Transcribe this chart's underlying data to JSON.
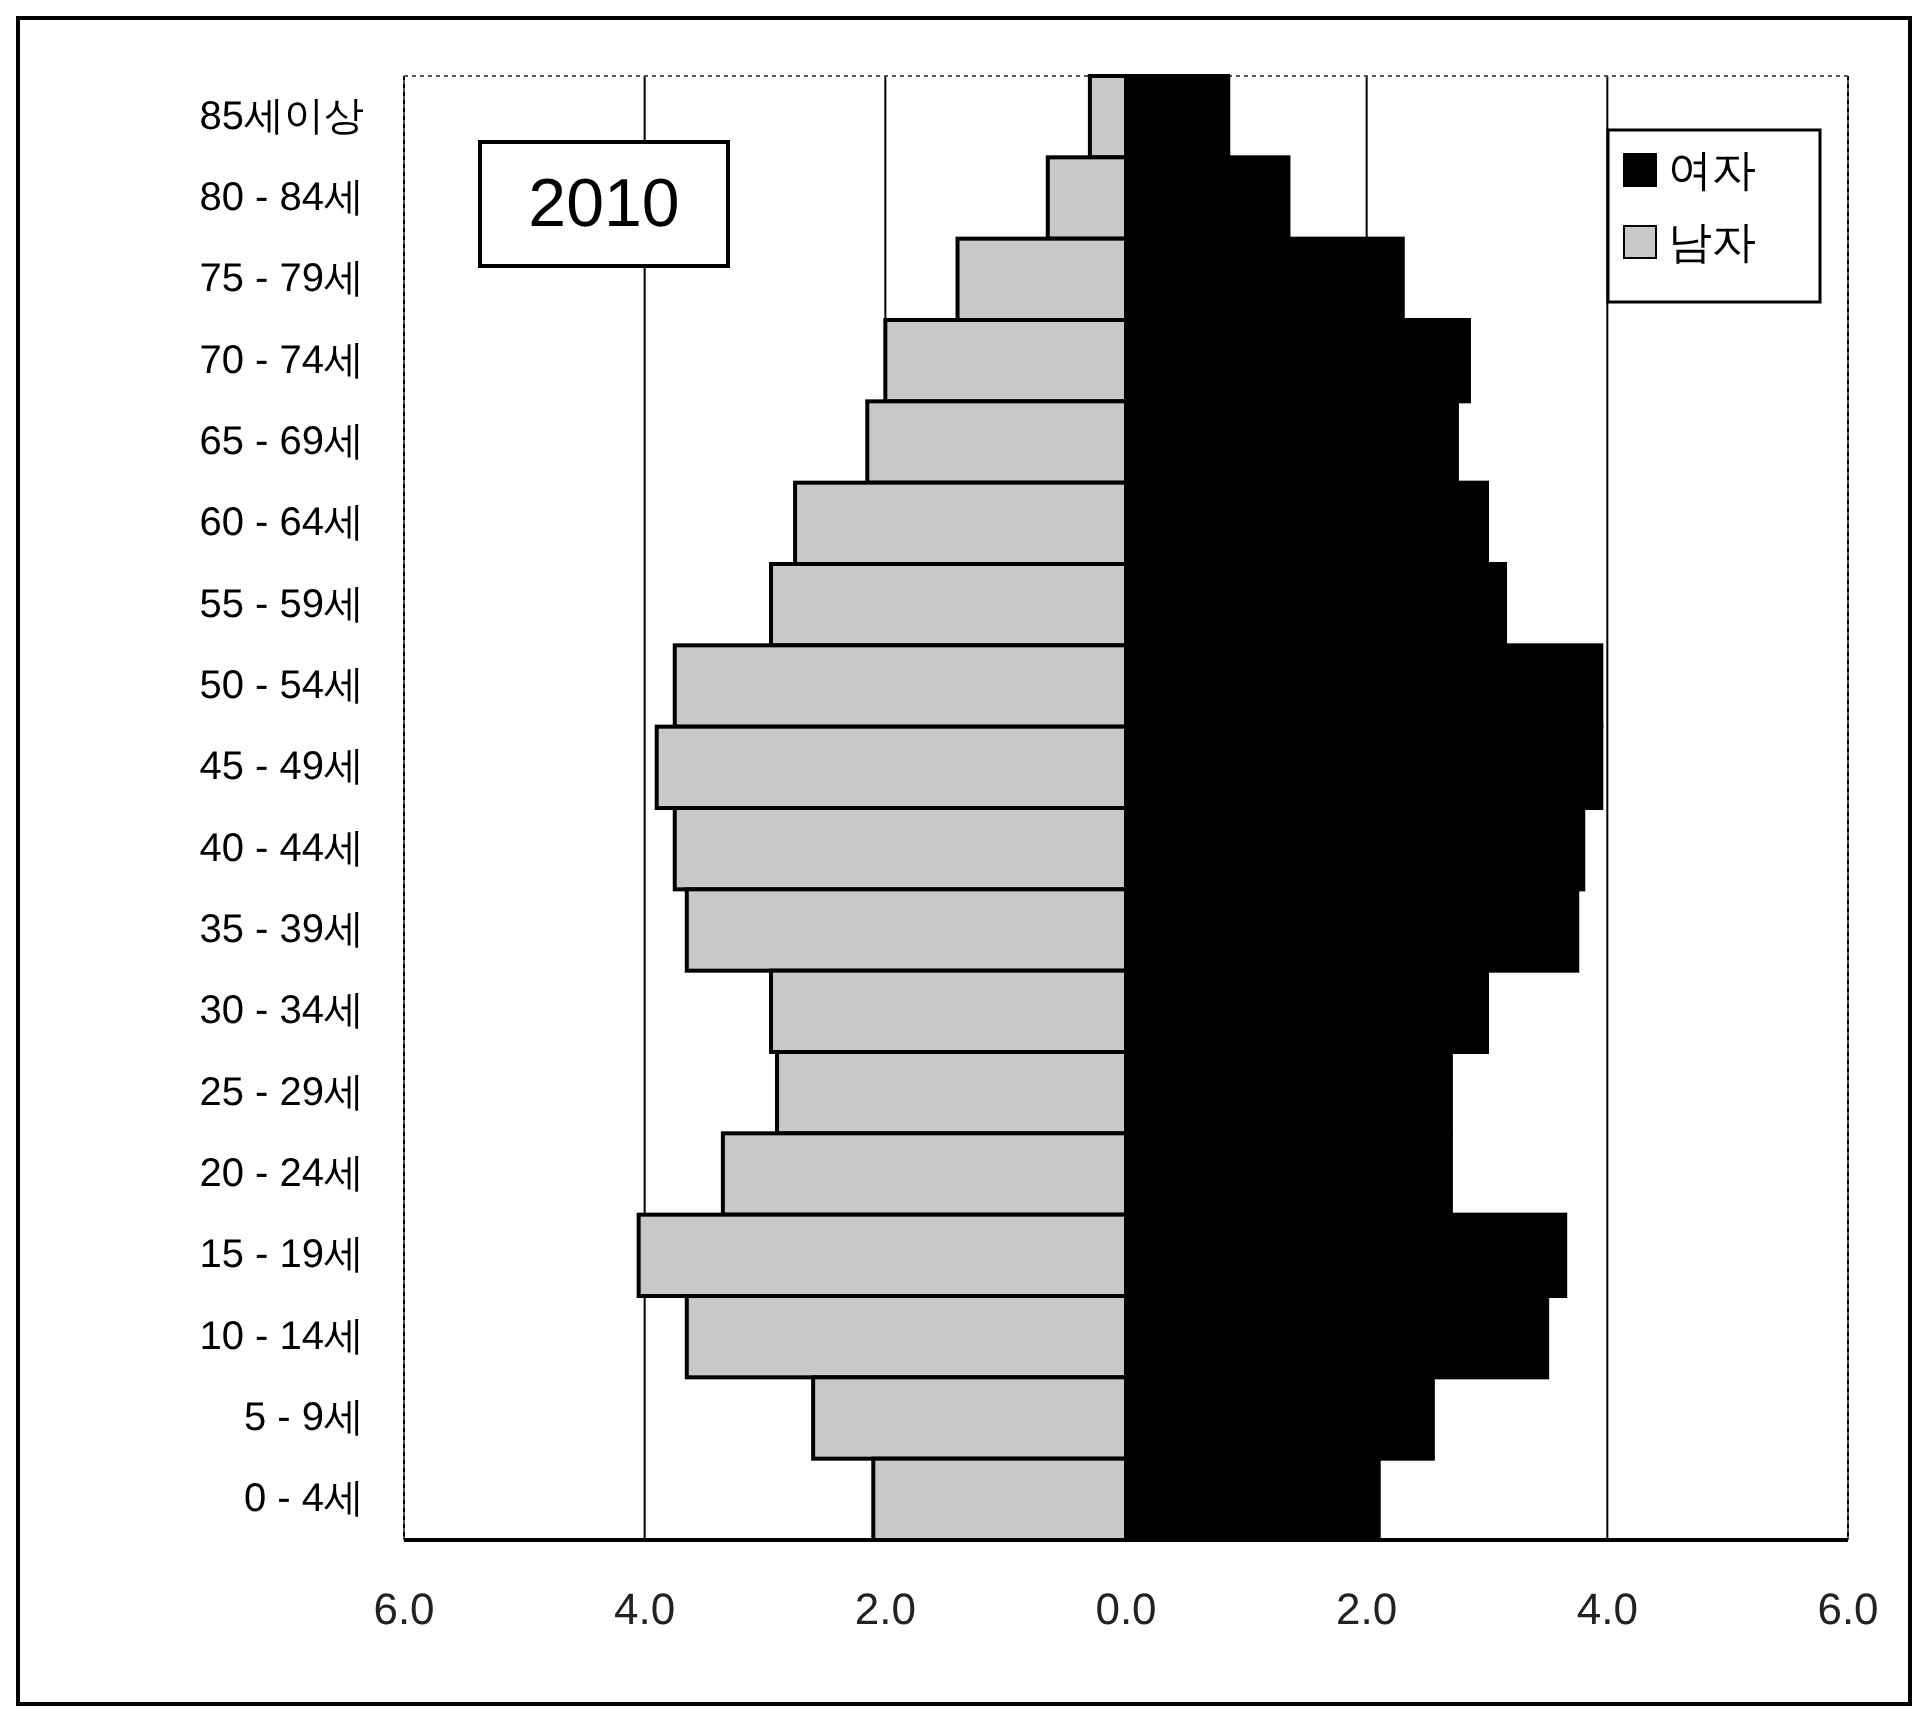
{
  "chart_data": {
    "type": "bar",
    "orientation": "horizontal",
    "stacked": true,
    "categories": [
      "85세이상",
      "80 - 84세",
      "75 - 79세",
      "70 - 74세",
      "65 - 69세",
      "60 - 64세",
      "55 - 59세",
      "50 - 54세",
      "45 - 49세",
      "40 - 44세",
      "35 - 39세",
      "30 - 34세",
      "25 - 29세",
      "20 - 24세",
      "15 - 19세",
      "10 - 14세",
      "5 - 9세",
      "0 - 4세"
    ],
    "series": [
      {
        "name": "여자",
        "color": "#000000",
        "values": [
          0.85,
          1.35,
          2.3,
          2.85,
          2.75,
          3.0,
          3.15,
          3.95,
          3.95,
          3.8,
          3.75,
          3.0,
          2.7,
          2.7,
          3.65,
          3.5,
          2.55,
          2.1
        ]
      },
      {
        "name": "남자",
        "color": "#c8c8c8",
        "values": [
          -0.3,
          -0.65,
          -1.4,
          -2.0,
          -2.15,
          -2.75,
          -2.95,
          -3.75,
          -3.9,
          -3.75,
          -3.65,
          -2.95,
          -2.9,
          -3.35,
          -4.05,
          -3.65,
          -2.6,
          -2.1
        ]
      }
    ],
    "xlim": [
      -6,
      6
    ],
    "xticks": [
      {
        "value": -6,
        "label": "6.0"
      },
      {
        "value": -4,
        "label": "4.0"
      },
      {
        "value": -2,
        "label": "2.0"
      },
      {
        "value": 0,
        "label": "0.0"
      },
      {
        "value": 2,
        "label": "2.0"
      },
      {
        "value": 4,
        "label": "4.0"
      },
      {
        "value": 6,
        "label": "6.0"
      }
    ],
    "grid": "x",
    "legend": "top right",
    "annotations": [
      "2010"
    ]
  }
}
